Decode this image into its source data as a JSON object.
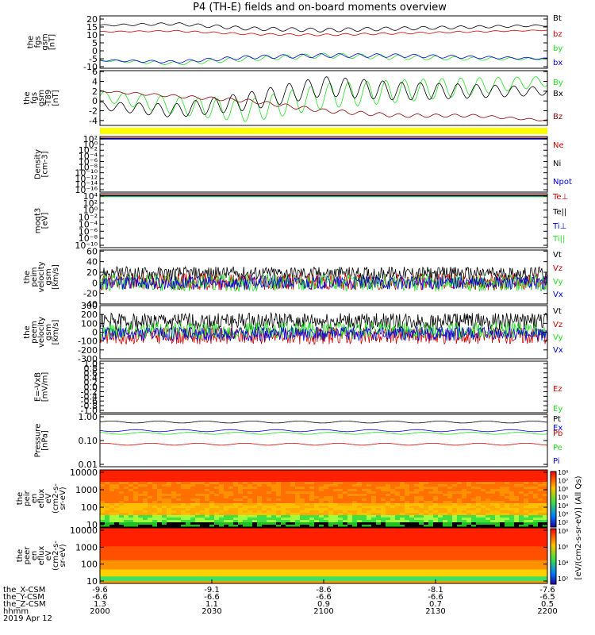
{
  "title": "P4 (TH-E) fields and on-board moments overview",
  "colors": {
    "black": "#000000",
    "red": "#d00000",
    "green": "#20e020",
    "blue": "#0000dd",
    "darkred": "#8b0000",
    "yellow": "#ffff00"
  },
  "chart_data": [
    {
      "type": "line",
      "id": "fgs",
      "ylabel": [
        "the",
        "fgs",
        "gsm",
        "[nT]"
      ],
      "ylim": [
        -11,
        22
      ],
      "yticks": [
        20,
        15,
        10,
        5,
        0,
        -5,
        -10
      ],
      "legend_placement": "right",
      "series": [
        {
          "name": "Bt",
          "color": "#000000",
          "base": 16,
          "amp": 1.2,
          "trend": [
            16,
            17,
            14,
            13,
            14,
            15,
            16
          ]
        },
        {
          "name": "bz",
          "color": "#d00000",
          "base": 12,
          "amp": 0.6,
          "trend": [
            12,
            12.5,
            10.5,
            10,
            11,
            12,
            13
          ]
        },
        {
          "name": "by",
          "color": "#20e020",
          "base": -6,
          "amp": 1.5,
          "trend": [
            -6,
            -8,
            -5,
            -3,
            -4,
            -5,
            -5
          ]
        },
        {
          "name": "bx",
          "color": "#0000dd",
          "base": -6,
          "amp": 1.2,
          "trend": [
            -6,
            -7,
            -4,
            -3,
            -3,
            -4,
            -5
          ]
        }
      ]
    },
    {
      "type": "line",
      "id": "fgs_dgsm",
      "ylabel": [
        "the",
        "fgs",
        "gsm",
        "-T89",
        "[nT]"
      ],
      "ylim": [
        -5,
        6.2
      ],
      "yticks": [
        6,
        4,
        2,
        0,
        -2,
        -4
      ],
      "legend_placement": "right",
      "series": [
        {
          "name": "By",
          "color": "#20e020",
          "base": 0,
          "amp": 2.5,
          "trend": [
            1,
            -1,
            -2,
            1,
            2,
            3,
            4
          ]
        },
        {
          "name": "Bx",
          "color": "#000000",
          "base": 0,
          "amp": 2.0,
          "trend": [
            -1,
            -2,
            0,
            3,
            2,
            2,
            2
          ]
        },
        {
          "name": "Bz",
          "color": "#8b0000",
          "base": 0,
          "amp": 0.4,
          "trend": [
            2,
            1,
            0,
            -2,
            -3,
            -3,
            -4
          ]
        }
      ]
    },
    {
      "type": "line",
      "id": "density",
      "ylabel": [
        "Density",
        "[cm-3]"
      ],
      "ylim_log": [
        -16,
        2
      ],
      "yticks": [
        "10²",
        "10⁰",
        "10⁻²",
        "10⁻⁴",
        "10⁻⁶",
        "10⁻⁸",
        "10⁻¹⁰",
        "10⁻¹²",
        "10⁻¹⁴",
        "10⁻¹⁶"
      ],
      "legend_placement": "right",
      "series": [
        {
          "name": "Ne",
          "color": "#d00000"
        },
        {
          "name": "Ni",
          "color": "#000000"
        },
        {
          "name": "Npot",
          "color": "#0000dd"
        }
      ]
    },
    {
      "type": "line",
      "id": "temp",
      "ylabel": [
        "moqt3",
        "[eV]"
      ],
      "yticks": [
        "10⁴",
        "10²",
        "10⁰",
        "10⁻²",
        "10⁻⁴",
        "10⁻⁶",
        "10⁻⁸",
        "10⁻¹⁰"
      ],
      "legend_placement": "right",
      "series": [
        {
          "name": "Te⊥",
          "color": "#d00000"
        },
        {
          "name": "Te||",
          "color": "#000000"
        },
        {
          "name": "Ti⊥",
          "color": "#0000dd"
        },
        {
          "name": "Ti||",
          "color": "#20e020"
        }
      ]
    },
    {
      "type": "line",
      "id": "peim_vel",
      "ylabel": [
        "the",
        "peim",
        "velocity",
        "gsm",
        "[km/s]"
      ],
      "ylim": [
        -40,
        62
      ],
      "yticks": [
        60,
        40,
        20,
        0,
        -20,
        -40
      ],
      "legend_placement": "right",
      "series": [
        {
          "name": "Vt",
          "color": "#000000",
          "base": 18,
          "amp": 8
        },
        {
          "name": "Vz",
          "color": "#d00000",
          "base": 2,
          "amp": 10
        },
        {
          "name": "Vy",
          "color": "#20e020",
          "base": 0,
          "amp": 10
        },
        {
          "name": "Vx",
          "color": "#0000dd",
          "base": 0,
          "amp": 8
        }
      ]
    },
    {
      "type": "line",
      "id": "peem_vel",
      "ylabel": [
        "the",
        "peem",
        "velocity",
        "gsm",
        "[km/s]"
      ],
      "ylim": [
        -300,
        300
      ],
      "yticks": [
        300,
        200,
        100,
        0,
        -100,
        -200,
        -300
      ],
      "legend_placement": "right",
      "series": [
        {
          "name": "Vt",
          "color": "#000000",
          "base": 120,
          "amp": 60
        },
        {
          "name": "Vz",
          "color": "#d00000",
          "base": -40,
          "amp": 60
        },
        {
          "name": "Vy",
          "color": "#20e020",
          "base": 20,
          "amp": 60
        },
        {
          "name": "Vx",
          "color": "#0000dd",
          "base": -20,
          "amp": 50
        }
      ]
    },
    {
      "type": "line",
      "id": "efield",
      "ylabel": [
        "E=-VxB",
        "[mV/m]"
      ],
      "ylim": [
        -1,
        1
      ],
      "yticks": [
        "1.0",
        "0.8",
        "0.6",
        "0.4",
        "0.2",
        "0.0",
        "-0.2",
        "-0.4",
        "-0.6",
        "-0.8",
        "-1.0"
      ],
      "legend_placement": "right",
      "series": [
        {
          "name": "Ez",
          "color": "#d00000"
        },
        {
          "name": "Ey",
          "color": "#20e020"
        },
        {
          "name": "Ex",
          "color": "#0000dd"
        }
      ]
    },
    {
      "type": "line",
      "id": "pressure",
      "ylabel": [
        "Pressure",
        "[nPa]"
      ],
      "ylim_log": [
        -2,
        0.1
      ],
      "yticks": [
        "1.00",
        "0.10",
        "0.01"
      ],
      "legend_placement": "right",
      "series": [
        {
          "name": "Pt",
          "color": "#000000",
          "base": 0.62
        },
        {
          "name": "Pb",
          "color": "#d00000",
          "base": 0.08
        },
        {
          "name": "Pe",
          "color": "#20e020",
          "base": 0.22
        },
        {
          "name": "Pi",
          "color": "#0000dd",
          "base": 0.28
        }
      ]
    },
    {
      "type": "heatmap",
      "id": "peir",
      "ylabel": [
        "the",
        "peir",
        "en",
        "eflux",
        "eV",
        "(cm2-s-",
        "sr-eV)"
      ],
      "yticks": [
        "10000",
        "1000",
        "100",
        "10"
      ],
      "ylim_log": [
        0.85,
        4.35
      ]
    },
    {
      "type": "heatmap",
      "id": "peer",
      "ylabel": [
        "the",
        "peer",
        "en",
        "eflux",
        "eV",
        "(cm2-s-",
        "sr-eV)"
      ],
      "yticks": [
        "10000",
        "1000",
        "100",
        "10"
      ],
      "ylim_log": [
        0.85,
        4.35
      ]
    }
  ],
  "colorbar": {
    "label": "[eV/(cm2-s-sr-eV)] (All Qs)",
    "ticks_top": [
      "10⁸",
      "10⁷",
      "10⁶",
      "10⁵",
      "10⁴",
      "10³",
      "10²"
    ],
    "ticks_bottom": [
      "10⁸",
      "10⁶",
      "10⁴",
      "10²"
    ]
  },
  "x_axis": {
    "rows": [
      {
        "label": "the_X-CSM",
        "values": [
          "-9.6",
          "-9.1",
          "-8.6",
          "-8.1",
          "-7.6"
        ]
      },
      {
        "label": "the_Y-CSM",
        "values": [
          "-6.6",
          "-6.6",
          "-6.6",
          "-6.6",
          "-6.5"
        ]
      },
      {
        "label": "the_Z-CSM",
        "values": [
          "1.3",
          "1.1",
          "0.9",
          "0.7",
          "0.5"
        ]
      },
      {
        "label": "hhmm",
        "values": [
          "2000",
          "2030",
          "2100",
          "2130",
          "2200"
        ]
      }
    ],
    "date": "2019 Apr 12"
  }
}
